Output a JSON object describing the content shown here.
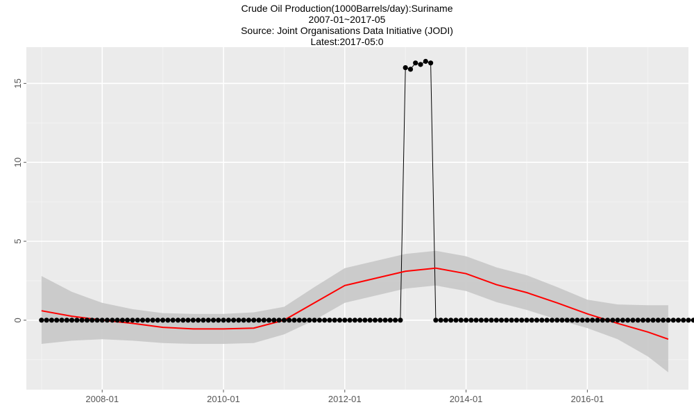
{
  "chart_data": {
    "type": "line",
    "title_lines": [
      "Crude Oil Production(1000Barrels/day):Suriname",
      "2007-01~2017-05",
      "Source: Joint Organisations Data Initiative (JODI)",
      "Latest:2017-05:0"
    ],
    "xlabel": "",
    "ylabel": "",
    "x_ticks": [
      "2008-01",
      "2010-01",
      "2012-01",
      "2014-01",
      "2016-01"
    ],
    "y_ticks": [
      0,
      5,
      10,
      15
    ],
    "ylim": [
      -4.4,
      17.3
    ],
    "xlim": [
      "2006-10",
      "2017-09"
    ],
    "grid": true,
    "background_color": "#ebebeb",
    "series": [
      {
        "role": "observed",
        "color": "#000000",
        "start": "2007-01",
        "values": [
          0,
          0,
          0,
          0,
          0,
          0,
          0,
          0,
          0,
          0,
          0,
          0,
          0,
          0,
          0,
          0,
          0,
          0,
          0,
          0,
          0,
          0,
          0,
          0,
          0,
          0,
          0,
          0,
          0,
          0,
          0,
          0,
          0,
          0,
          0,
          0,
          0,
          0,
          0,
          0,
          0,
          0,
          0,
          0,
          0,
          0,
          0,
          0,
          0,
          0,
          0,
          0,
          0,
          0,
          0,
          0,
          0,
          0,
          0,
          0,
          0,
          0,
          0,
          0,
          0,
          0,
          0,
          0,
          0,
          0,
          0,
          0,
          16.0,
          15.9,
          16.3,
          16.2,
          16.4,
          16.3,
          0,
          0,
          0,
          0,
          0,
          0,
          0,
          0,
          0,
          0,
          0,
          0,
          0,
          0,
          0,
          0,
          0,
          0,
          0,
          0,
          0,
          0,
          0,
          0,
          0,
          0,
          0,
          0,
          0,
          0,
          0,
          0,
          0,
          0,
          0,
          0,
          0,
          0,
          0,
          0,
          0,
          0,
          0,
          0,
          0,
          0,
          0,
          0,
          0,
          0,
          0,
          0,
          0,
          0,
          0,
          0,
          0,
          0,
          0,
          0,
          0,
          0,
          0,
          0,
          0,
          0,
          0
        ]
      },
      {
        "role": "smoothed",
        "color": "#ff0000",
        "band_color": "#c8c8c8",
        "points": [
          {
            "date": "2007-01",
            "y": 0.6,
            "lo": -1.5,
            "hi": 2.8
          },
          {
            "date": "2007-07",
            "y": 0.25,
            "lo": -1.3,
            "hi": 1.8
          },
          {
            "date": "2008-01",
            "y": 0.0,
            "lo": -1.2,
            "hi": 1.1
          },
          {
            "date": "2008-07",
            "y": -0.2,
            "lo": -1.3,
            "hi": 0.7
          },
          {
            "date": "2009-01",
            "y": -0.45,
            "lo": -1.45,
            "hi": 0.45
          },
          {
            "date": "2009-07",
            "y": -0.55,
            "lo": -1.5,
            "hi": 0.4
          },
          {
            "date": "2010-01",
            "y": -0.55,
            "lo": -1.5,
            "hi": 0.4
          },
          {
            "date": "2010-07",
            "y": -0.5,
            "lo": -1.45,
            "hi": 0.5
          },
          {
            "date": "2011-01",
            "y": 0.0,
            "lo": -0.9,
            "hi": 0.85
          },
          {
            "date": "2011-07",
            "y": 1.1,
            "lo": 0.0,
            "hi": 2.1
          },
          {
            "date": "2012-01",
            "y": 2.2,
            "lo": 1.1,
            "hi": 3.3
          },
          {
            "date": "2012-07",
            "y": 2.65,
            "lo": 1.55,
            "hi": 3.75
          },
          {
            "date": "2013-01",
            "y": 3.1,
            "lo": 2.0,
            "hi": 4.2
          },
          {
            "date": "2013-07",
            "y": 3.3,
            "lo": 2.2,
            "hi": 4.4
          },
          {
            "date": "2014-01",
            "y": 2.95,
            "lo": 1.85,
            "hi": 4.05
          },
          {
            "date": "2014-07",
            "y": 2.25,
            "lo": 1.15,
            "hi": 3.35
          },
          {
            "date": "2015-01",
            "y": 1.75,
            "lo": 0.65,
            "hi": 2.85
          },
          {
            "date": "2015-07",
            "y": 1.1,
            "lo": 0.05,
            "hi": 2.1
          },
          {
            "date": "2016-01",
            "y": 0.4,
            "lo": -0.5,
            "hi": 1.3
          },
          {
            "date": "2016-07",
            "y": -0.2,
            "lo": -1.2,
            "hi": 1.0
          },
          {
            "date": "2017-01",
            "y": -0.75,
            "lo": -2.3,
            "hi": 0.95
          },
          {
            "date": "2017-05",
            "y": -1.2,
            "lo": -3.3,
            "hi": 0.95
          }
        ]
      }
    ]
  }
}
